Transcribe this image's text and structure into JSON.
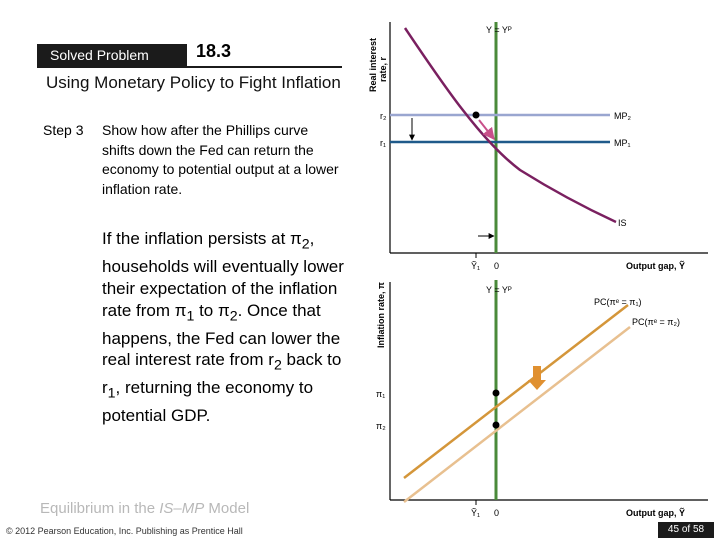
{
  "header": {
    "badge_label": "Solved Problem",
    "badge_number": "18.3",
    "title": "Using Monetary Policy to Fight Inflation"
  },
  "step": {
    "label": "Step 3",
    "text": "Show how after the Phillips curve shifts down the Fed can return the economy to potential output at a lower inflation rate."
  },
  "body": {
    "t1": "If the inflation persists at π",
    "t1_sub": "2",
    "t2": ", households will eventually lower their expectation of the inflation rate from π",
    "t2_sub": "1",
    "t3": " to π",
    "t3_sub": "2",
    "t4": ". Once that happens, the Fed can lower the real interest rate from r",
    "t4_sub": "2",
    "t5": " back to r",
    "t5_sub": "1",
    "t6": ", returning the economy to potential GDP."
  },
  "footer": {
    "title_prefix": "Equilibrium in the ",
    "title_em": "IS–MP",
    "title_suffix": " Model",
    "copyright": "© 2012 Pearson Education, Inc. Publishing as Prentice Hall",
    "page": "45 of 58"
  },
  "top_graph": {
    "y_label_line1": "Real interest",
    "y_label_line2": "rate, r",
    "x_label": "Output gap, Ỹ",
    "potential_label": "Y = Yᴾ",
    "r2_label": "r₂",
    "r1_label": "r₁",
    "mp2_label": "MP₂",
    "mp1_label": "MP₁",
    "is_label": "IS",
    "y1_tick": "Ỹ₁",
    "zero_tick": "0"
  },
  "bottom_graph": {
    "y_label": "Inflation rate, π",
    "x_label": "Output gap, Ỹ",
    "potential_label": "Y = Yᴾ",
    "pc1_label": "PC(πᵉ = π₁)",
    "pc2_label": "PC(πᵉ = π₂)",
    "pi1_label": "π₁",
    "pi2_label": "π₂",
    "y1_tick": "Ỹ₁",
    "zero_tick": "0"
  },
  "colors": {
    "potential_line": "#4a8a3a",
    "is_curve": "#7a2060",
    "mp2_line": "#9aa6d0",
    "mp1_line": "#1f5a8a",
    "pc1_line": "#d4963a",
    "pc2_line": "#e8c090",
    "shift_arrow": "#e09030"
  }
}
